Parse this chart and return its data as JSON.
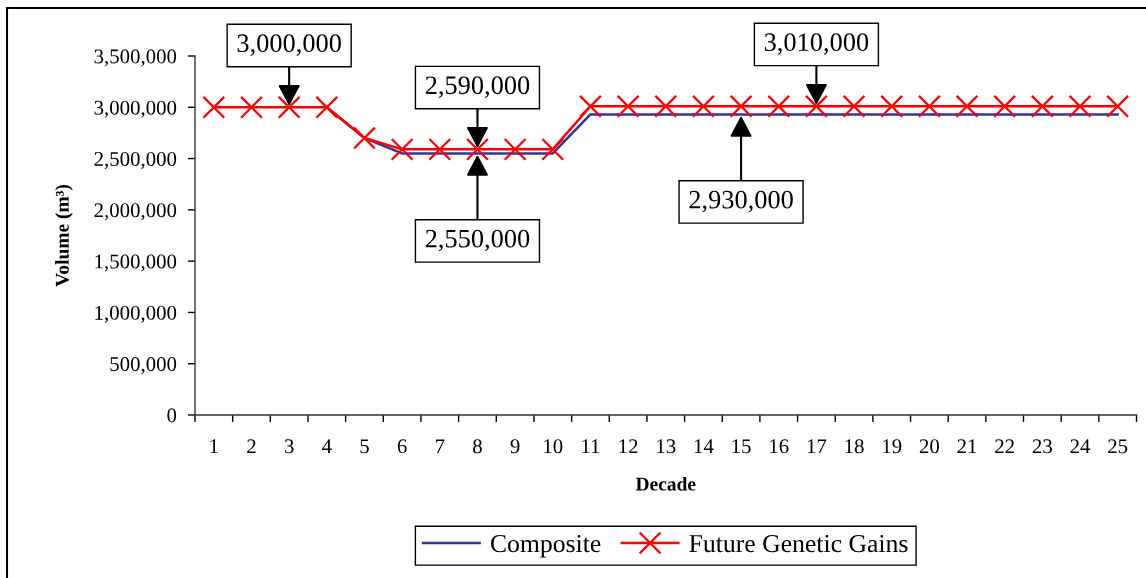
{
  "chart_data": {
    "type": "line",
    "xlabel": "Decade",
    "ylabel": "Volume (m³)",
    "categories": [
      "1",
      "2",
      "3",
      "4",
      "5",
      "6",
      "7",
      "8",
      "9",
      "10",
      "11",
      "12",
      "13",
      "14",
      "15",
      "16",
      "17",
      "18",
      "19",
      "20",
      "21",
      "22",
      "23",
      "24",
      "25"
    ],
    "series": [
      {
        "name": "Composite",
        "color": "#333399",
        "marker": "none",
        "values": [
          null,
          null,
          null,
          3000000,
          2700000,
          2550000,
          2550000,
          2550000,
          2550000,
          2550000,
          2930000,
          2930000,
          2930000,
          2930000,
          2930000,
          2930000,
          2930000,
          2930000,
          2930000,
          2930000,
          2930000,
          2930000,
          2930000,
          2930000,
          2930000
        ]
      },
      {
        "name": "Future Genetic Gains",
        "color": "#ff0000",
        "marker": "cross",
        "values": [
          3000000,
          3000000,
          3000000,
          3000000,
          2700000,
          2590000,
          2590000,
          2590000,
          2590000,
          2590000,
          3010000,
          3010000,
          3010000,
          3010000,
          3010000,
          3010000,
          3010000,
          3010000,
          3010000,
          3010000,
          3010000,
          3010000,
          3010000,
          3010000,
          3010000
        ]
      }
    ],
    "ylim": [
      0,
      3500000
    ],
    "yticks": [
      0,
      {
        "value": 500000,
        "label": "500,000"
      },
      {
        "value": 1000000,
        "label": "1,000,000"
      },
      {
        "value": 1500000,
        "label": "1,500,000"
      },
      {
        "value": 2000000,
        "label": "2,000,000"
      },
      {
        "value": 2500000,
        "label": "2,500,000"
      },
      {
        "value": 3000000,
        "label": "3,000,000"
      },
      {
        "value": 3500000,
        "label": "3,500,000"
      }
    ],
    "legend": "bottom",
    "annotations": [
      {
        "text": "3,000,000",
        "x": "3",
        "y": 3000000
      },
      {
        "text": "2,590,000",
        "x": "8",
        "y": 2590000
      },
      {
        "text": "2,550,000",
        "x": "8",
        "y": 2550000
      },
      {
        "text": "2,930,000",
        "x": "15",
        "y": 2930000
      },
      {
        "text": "3,010,000",
        "x": "17",
        "y": 3010000
      }
    ]
  }
}
